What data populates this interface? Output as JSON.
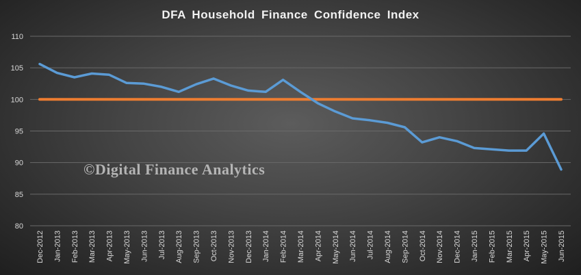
{
  "chart_data": {
    "type": "line",
    "title": "DFA Household Finance Confidence Index",
    "xlabel": "",
    "ylabel": "",
    "ylim": [
      80,
      110
    ],
    "yticks": [
      80,
      85,
      90,
      95,
      100,
      105,
      110
    ],
    "grid": true,
    "legend": "none",
    "categories": [
      "Dec-2012",
      "Jan-2013",
      "Feb-2013",
      "Mar-2013",
      "Apr-2013",
      "May-2013",
      "Jun-2013",
      "Jul-2013",
      "Aug-2013",
      "Sep-2013",
      "Oct-2013",
      "Nov-2013",
      "Dec-2013",
      "Jan-2014",
      "Feb-2014",
      "Mar-2014",
      "Apr-2014",
      "May-2014",
      "Jun-2014",
      "Jul-2014",
      "Aug-2014",
      "Sep-2014",
      "Oct-2014",
      "Nov-2014",
      "Dec-2014",
      "Jan-2015",
      "Feb-2015",
      "Mar-2015",
      "Apr-2015",
      "May-2015",
      "Jun-2015"
    ],
    "series": [
      {
        "color": "#5b9bd5",
        "values": [
          105.6,
          104.2,
          103.5,
          104.1,
          103.9,
          102.6,
          102.5,
          102.0,
          101.2,
          102.4,
          103.3,
          102.2,
          101.4,
          101.2,
          103.1,
          101.2,
          99.4,
          98.1,
          97.0,
          96.7,
          96.3,
          95.6,
          93.2,
          94.0,
          93.4,
          92.3,
          92.1,
          91.9,
          91.9,
          94.6,
          88.9
        ]
      },
      {
        "color": "#ed7d31",
        "values": [
          100,
          100,
          100,
          100,
          100,
          100,
          100,
          100,
          100,
          100,
          100,
          100,
          100,
          100,
          100,
          100,
          100,
          100,
          100,
          100,
          100,
          100,
          100,
          100,
          100,
          100,
          100,
          100,
          100,
          100,
          100
        ]
      }
    ],
    "watermark": "©Digital Finance Analytics"
  }
}
